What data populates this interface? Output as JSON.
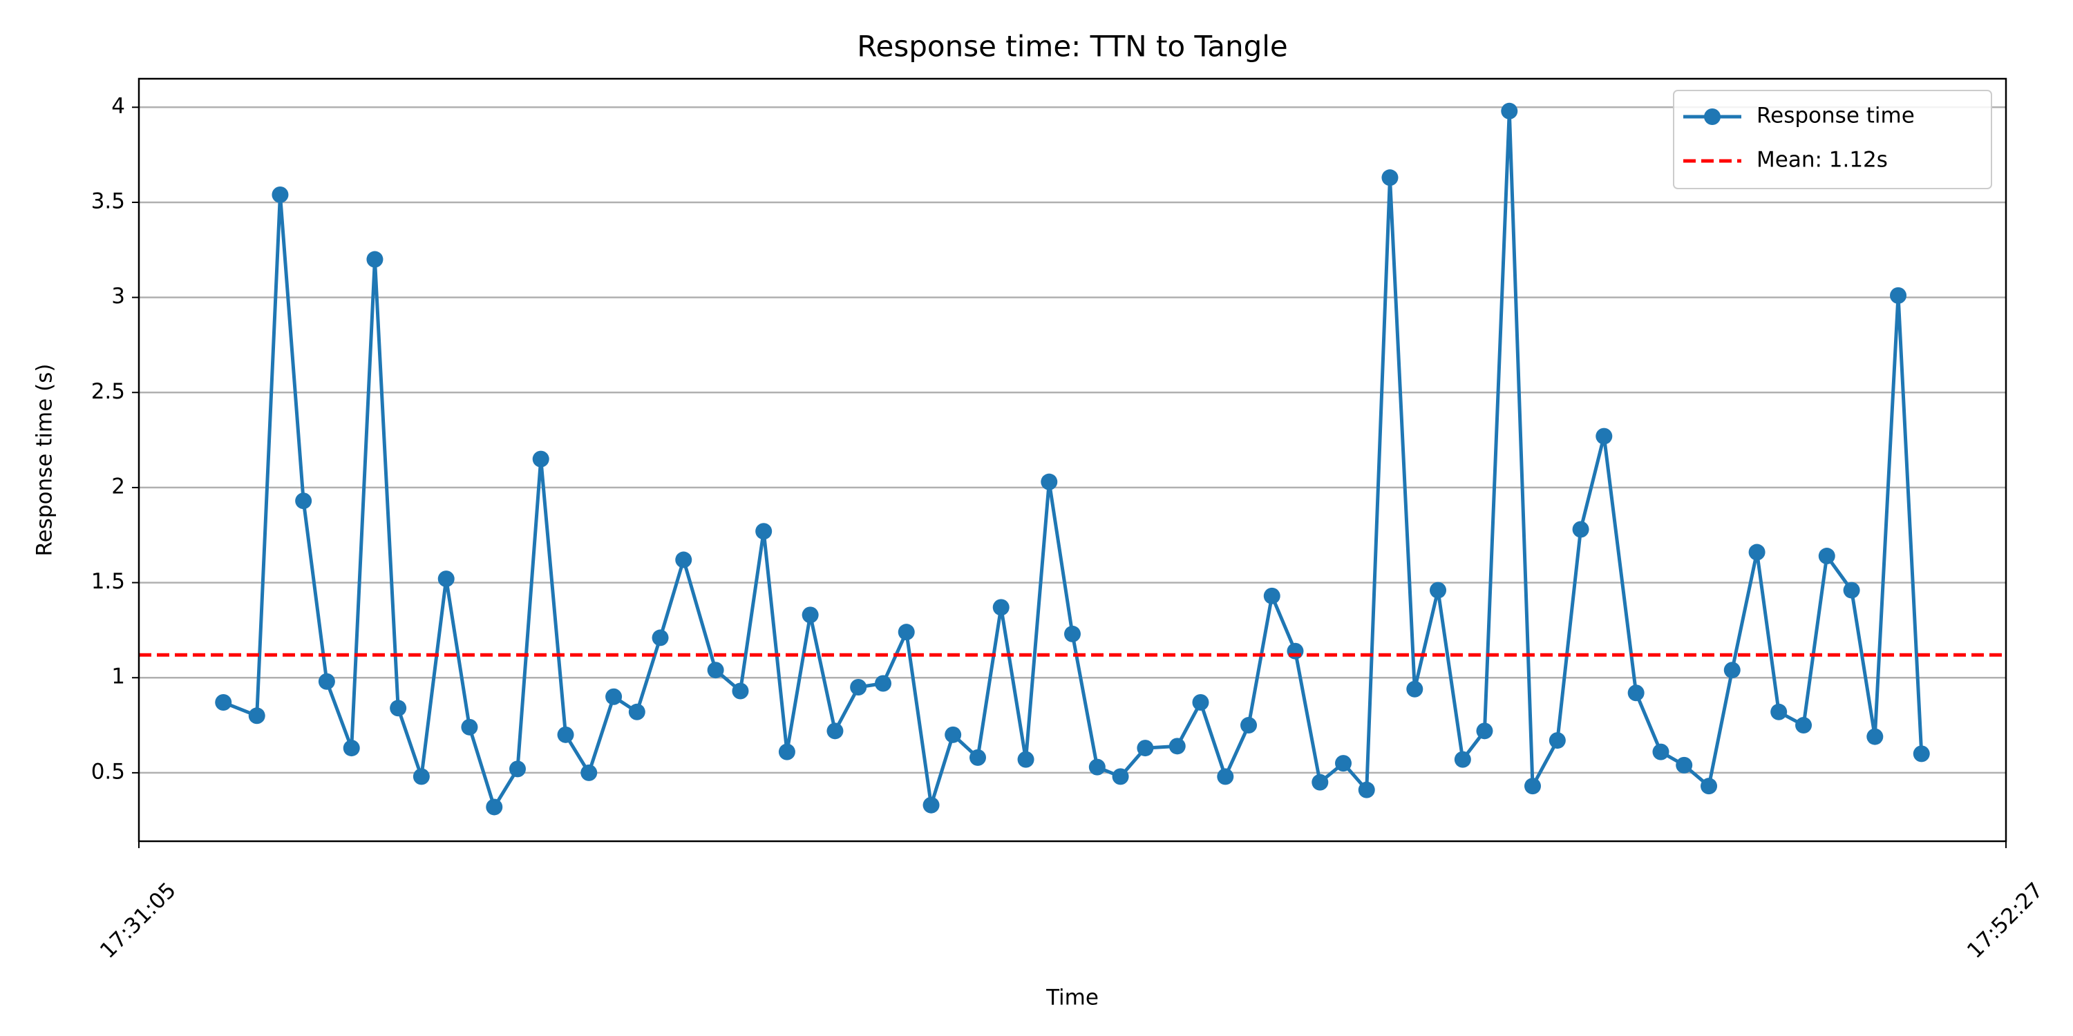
{
  "chart_data": {
    "type": "line",
    "title": "Response time: TTN to Tangle",
    "xlabel": "Time",
    "ylabel": "Response time (s)",
    "x": [
      "17:32:03",
      "17:32:26",
      "17:32:42",
      "17:32:58",
      "17:33:14",
      "17:33:31",
      "17:33:47",
      "17:34:03",
      "17:34:19",
      "17:34:36",
      "17:34:52",
      "17:35:09",
      "17:35:25",
      "17:35:41",
      "17:35:58",
      "17:36:14",
      "17:36:31",
      "17:36:47",
      "17:37:03",
      "17:37:19",
      "17:37:41",
      "17:37:58",
      "17:38:14",
      "17:38:30",
      "17:38:46",
      "17:39:03",
      "17:39:19",
      "17:39:36",
      "17:39:52",
      "17:40:09",
      "17:40:24",
      "17:40:41",
      "17:40:57",
      "17:41:14",
      "17:41:30",
      "17:41:46",
      "17:42:03",
      "17:42:19",
      "17:42:36",
      "17:42:58",
      "17:43:14",
      "17:43:31",
      "17:43:47",
      "17:44:03",
      "17:44:19",
      "17:44:36",
      "17:44:52",
      "17:45:08",
      "17:45:24",
      "17:45:41",
      "17:45:57",
      "17:46:14",
      "17:46:29",
      "17:46:46",
      "17:47:02",
      "17:47:19",
      "17:47:35",
      "17:47:51",
      "17:48:13",
      "17:48:30",
      "17:48:46",
      "17:49:03",
      "17:49:19",
      "17:49:36",
      "17:49:51",
      "17:50:08",
      "17:50:24",
      "17:50:41",
      "17:50:57",
      "17:51:13",
      "17:51:29"
    ],
    "series": [
      {
        "name": "Response time",
        "color": "#1f77b4",
        "values": [
          0.87,
          0.8,
          3.54,
          1.93,
          0.98,
          0.63,
          3.2,
          0.84,
          0.48,
          1.52,
          0.74,
          0.32,
          0.52,
          2.15,
          0.7,
          0.5,
          0.9,
          0.82,
          1.21,
          1.62,
          1.04,
          0.93,
          1.77,
          0.61,
          1.33,
          0.72,
          0.95,
          0.97,
          1.24,
          0.33,
          0.7,
          0.58,
          1.37,
          0.57,
          2.03,
          1.23,
          0.53,
          0.48,
          0.63,
          0.64,
          0.87,
          0.48,
          0.75,
          1.43,
          1.14,
          0.45,
          0.55,
          0.41,
          3.63,
          0.94,
          1.46,
          0.57,
          0.72,
          3.98,
          0.43,
          0.67,
          1.78,
          2.27,
          0.92,
          0.61,
          0.54,
          0.43,
          1.04,
          1.66,
          0.82,
          0.75,
          1.64,
          1.46,
          0.69,
          3.01,
          0.6
        ]
      }
    ],
    "mean_line": {
      "name": "Mean: 1.12s",
      "value": 1.12,
      "color": "#ff0000"
    },
    "xlim": [
      "17:31:05",
      "17:52:27"
    ],
    "xticks": [
      "17:31:05",
      "17:52:27"
    ],
    "ylim": [
      0.14,
      4.15
    ],
    "yticks": [
      0.5,
      1.0,
      1.5,
      2.0,
      2.5,
      3.0,
      3.5,
      4.0
    ],
    "grid": "y",
    "legend": "upper right"
  }
}
